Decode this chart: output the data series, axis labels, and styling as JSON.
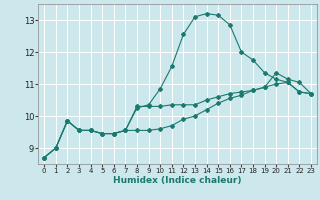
{
  "background_color": "#cde8ec",
  "grid_color": "#ffffff",
  "line_color": "#1a7a6e",
  "xlabel": "Humidex (Indice chaleur)",
  "xlim": [
    -0.5,
    23.5
  ],
  "ylim": [
    8.5,
    13.5
  ],
  "yticks": [
    9,
    10,
    11,
    12,
    13
  ],
  "xticks": [
    0,
    1,
    2,
    3,
    4,
    5,
    6,
    7,
    8,
    9,
    10,
    11,
    12,
    13,
    14,
    15,
    16,
    17,
    18,
    19,
    20,
    21,
    22,
    23
  ],
  "series": [
    {
      "x": [
        0,
        1,
        2,
        3,
        4,
        5,
        6,
        7,
        8,
        9,
        10,
        11,
        12,
        13,
        14,
        15,
        16,
        17,
        18,
        19,
        20,
        21,
        22,
        23
      ],
      "y": [
        8.7,
        9.0,
        9.85,
        9.55,
        9.55,
        9.45,
        9.45,
        9.55,
        10.25,
        10.35,
        10.85,
        11.55,
        12.55,
        13.1,
        13.2,
        13.15,
        12.85,
        12.0,
        11.75,
        11.35,
        11.15,
        11.05,
        10.75,
        10.7
      ]
    },
    {
      "x": [
        0,
        1,
        2,
        3,
        4,
        5,
        6,
        7,
        8,
        9,
        10,
        11,
        12,
        13,
        14,
        15,
        16,
        17,
        18,
        19,
        20,
        21,
        22,
        23
      ],
      "y": [
        8.7,
        9.0,
        9.85,
        9.55,
        9.55,
        9.45,
        9.45,
        9.55,
        10.3,
        10.3,
        10.3,
        10.35,
        10.35,
        10.35,
        10.5,
        10.6,
        10.7,
        10.75,
        10.8,
        10.9,
        11.35,
        11.15,
        11.05,
        10.7
      ]
    },
    {
      "x": [
        0,
        1,
        2,
        3,
        4,
        5,
        6,
        7,
        8,
        9,
        10,
        11,
        12,
        13,
        14,
        15,
        16,
        17,
        18,
        19,
        20,
        21,
        22,
        23
      ],
      "y": [
        8.7,
        9.0,
        9.85,
        9.55,
        9.55,
        9.45,
        9.45,
        9.55,
        9.55,
        9.55,
        9.6,
        9.7,
        9.9,
        10.0,
        10.2,
        10.4,
        10.55,
        10.65,
        10.8,
        10.9,
        11.0,
        11.05,
        10.75,
        10.7
      ]
    }
  ]
}
